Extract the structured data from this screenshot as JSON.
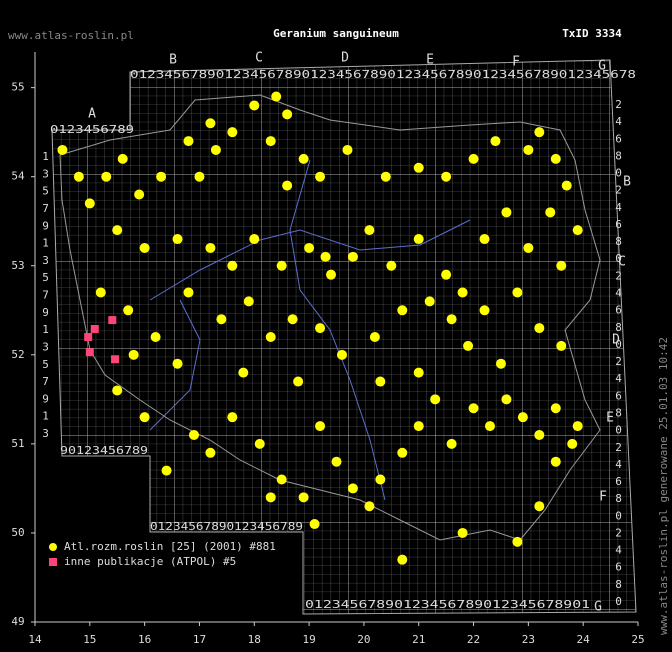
{
  "header": {
    "site": "www.atlas-roslin.pl",
    "title": "Geranium sanguineum",
    "txid": "TxID 3334"
  },
  "side_note": "www.atlas-roslin.pl generowane 25.01.03 10:42",
  "grid_labels": {
    "top_letters": [
      "B",
      "C",
      "D",
      "E",
      "F",
      "G"
    ],
    "west_letter": "A",
    "right_letters": [
      "B",
      "C",
      "D",
      "E",
      "F",
      "G"
    ],
    "top_digits": "01234567890123456789012345678901234567890123456789012345678",
    "west_digits": "0123456789",
    "bottom_west_digits": "90123456789",
    "bottom_mid_digits": "01234567890123456789",
    "bottom_east_digits": "01234567890123456789012345678901",
    "left_digits": "13579135791357913",
    "right_digits": "246802468024680246802468024680"
  },
  "chart_data": {
    "type": "scatter",
    "xlim": [
      14,
      25
    ],
    "ylim": [
      49,
      55.4
    ],
    "xticks": [
      14,
      15,
      16,
      17,
      18,
      19,
      20,
      21,
      22,
      23,
      24,
      25
    ],
    "yticks": [
      49,
      50,
      51,
      52,
      53,
      54,
      55
    ],
    "series": [
      {
        "name": "Atl.rozm.roslin [25] (2001) #881",
        "color": "#ffff00",
        "marker": "circle",
        "x": [
          14.5,
          14.8,
          15.0,
          15.3,
          15.6,
          15.9,
          16.3,
          16.8,
          17.2,
          17.3,
          17.0,
          17.6,
          18.0,
          18.4,
          18.6,
          18.3,
          18.9,
          19.2,
          18.6,
          19.7,
          20.4,
          21.0,
          21.5,
          22.0,
          22.4,
          23.0,
          23.2,
          23.5,
          23.7,
          23.4,
          23.9,
          23.6,
          23.0,
          22.6,
          22.2,
          15.5,
          16.0,
          16.6,
          17.2,
          17.6,
          18.0,
          18.5,
          19.0,
          19.3,
          19.4,
          19.8,
          20.1,
          20.5,
          21.0,
          21.5,
          21.8,
          22.2,
          22.8,
          23.2,
          23.6,
          15.2,
          15.7,
          16.2,
          16.8,
          17.4,
          17.9,
          18.3,
          18.7,
          19.2,
          19.6,
          20.2,
          20.7,
          21.2,
          21.6,
          21.9,
          22.5,
          15.5,
          16.0,
          16.4,
          16.9,
          17.2,
          17.6,
          18.1,
          18.5,
          18.9,
          19.2,
          19.5,
          19.8,
          20.1,
          20.3,
          20.7,
          21.0,
          21.3,
          21.6,
          22.0,
          22.3,
          22.6,
          22.9,
          23.2,
          23.5,
          23.8,
          23.9,
          23.5,
          23.2,
          22.8,
          21.8,
          20.7,
          19.1,
          18.3,
          17.8,
          18.8,
          20.3,
          21.0,
          16.6,
          15.8
        ],
        "y": [
          54.3,
          54.0,
          53.7,
          54.0,
          54.2,
          53.8,
          54.0,
          54.4,
          54.6,
          54.3,
          54.0,
          54.5,
          54.8,
          54.9,
          54.7,
          54.4,
          54.2,
          54.0,
          53.9,
          54.3,
          54.0,
          54.1,
          54.0,
          54.2,
          54.4,
          54.3,
          54.5,
          54.2,
          53.9,
          53.6,
          53.4,
          53.0,
          53.2,
          53.6,
          53.3,
          53.4,
          53.2,
          53.3,
          53.2,
          53.0,
          53.3,
          53.0,
          53.2,
          53.1,
          52.9,
          53.1,
          53.4,
          53.0,
          53.3,
          52.9,
          52.7,
          52.5,
          52.7,
          52.3,
          52.1,
          52.7,
          52.5,
          52.2,
          52.7,
          52.4,
          52.6,
          52.2,
          52.4,
          52.3,
          52.0,
          52.2,
          52.5,
          52.6,
          52.4,
          52.1,
          51.9,
          51.6,
          51.3,
          50.7,
          51.1,
          50.9,
          51.3,
          51.0,
          50.6,
          50.4,
          51.2,
          50.8,
          50.5,
          50.3,
          50.6,
          50.9,
          51.2,
          51.5,
          51.0,
          51.4,
          51.2,
          51.5,
          51.3,
          51.1,
          51.4,
          51.0,
          51.2,
          50.8,
          50.3,
          49.9,
          50.0,
          49.7,
          50.1,
          50.4,
          51.8,
          51.7,
          51.7,
          51.8,
          51.9,
          52.0
        ]
      },
      {
        "name": "inne publikacje (ATPOL) #5",
        "color": "#ff4477",
        "marker": "square",
        "x": [
          15.09,
          14.97,
          15.41,
          15.0,
          15.46
        ],
        "y": [
          52.29,
          52.2,
          52.39,
          52.03,
          51.95
        ]
      }
    ]
  }
}
